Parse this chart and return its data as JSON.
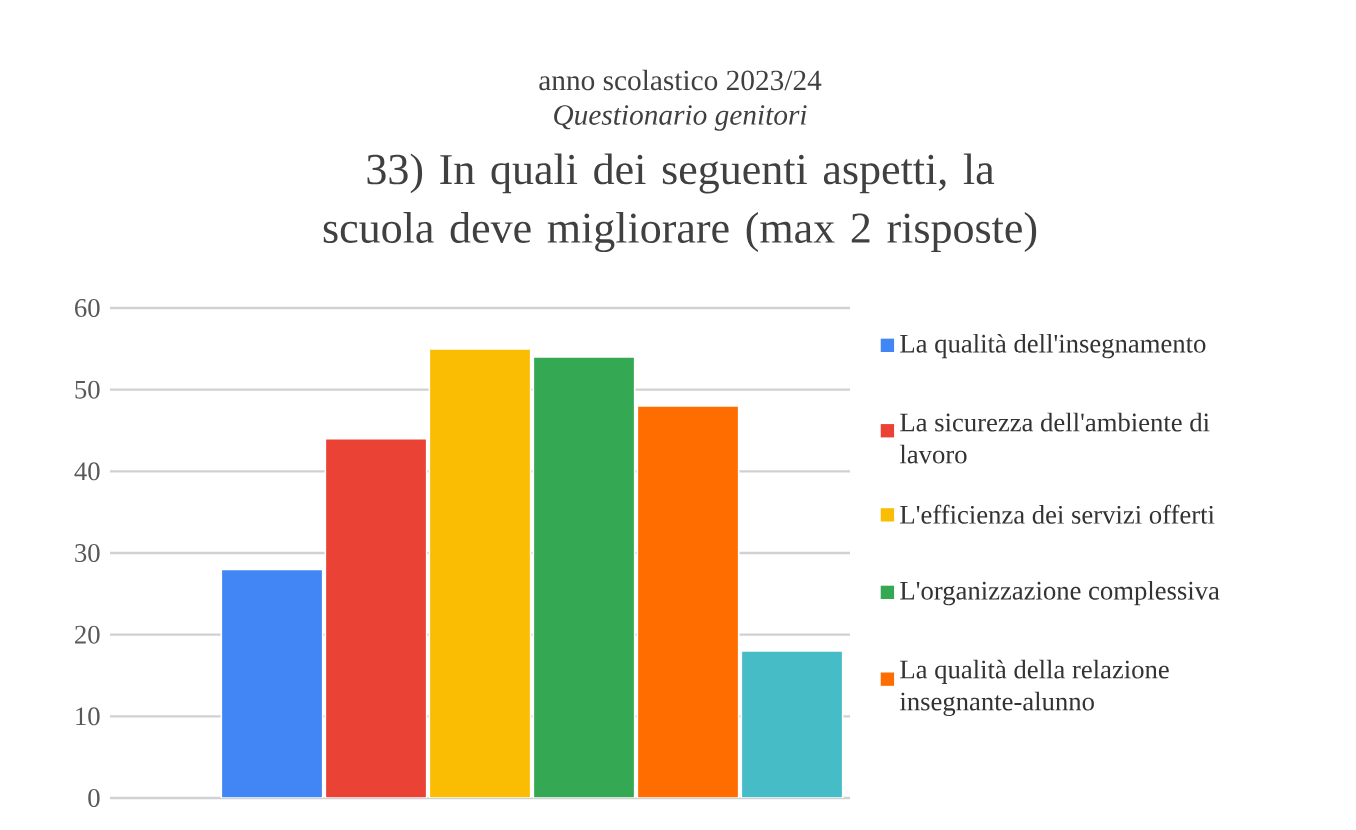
{
  "chart_data": {
    "type": "bar",
    "title": "33) In quali dei seguenti aspetti, la scuola deve migliorare (max 2 risposte)",
    "subtitle": "anno scolastico 2023/24",
    "annotations": [
      "*Questionario genitori*"
    ],
    "categories": [
      null
    ],
    "series": [
      {
        "name": "La qualità dell'insegnamento",
        "color": "#4285f4",
        "values": [
          28
        ]
      },
      {
        "name": "La sicurezza dell'ambiente di lavoro",
        "color": "#ea4335",
        "values": [
          44
        ]
      },
      {
        "name": "L'efficienza dei servizi offerti",
        "color": "#fbbc04",
        "values": [
          55
        ]
      },
      {
        "name": "L'organizzazione complessiva",
        "color": "#34a853",
        "values": [
          54
        ]
      },
      {
        "name": "La qualità della relazione insegnante-alunno",
        "color": "#ff6d01",
        "values": [
          48
        ]
      },
      {
        "color": "#46bdc6",
        "values": [
          18
        ]
      }
    ],
    "ylim": [
      0,
      60
    ],
    "yticks": [
      0,
      10,
      20,
      30,
      40,
      50,
      60
    ],
    "grid": "y",
    "legend": "right"
  }
}
